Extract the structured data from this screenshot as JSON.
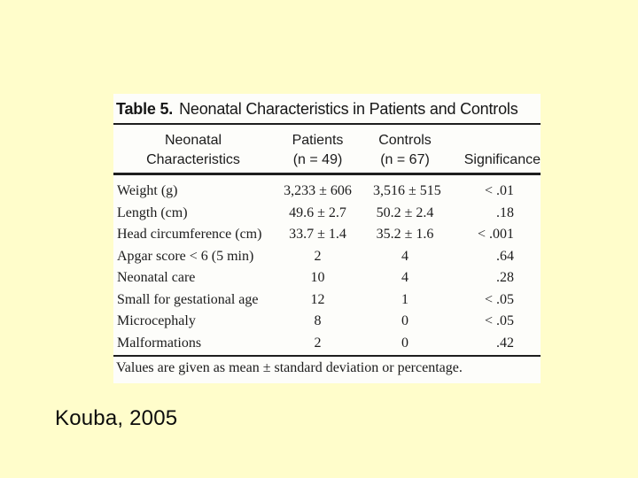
{
  "slide": {
    "background_color": "#FFFDCB",
    "citation": "Kouba, 2005"
  },
  "table_image": {
    "title_label": "Table 5.",
    "title_text": "Neonatal Characteristics in Patients and Controls",
    "header": {
      "characteristic_line1": "Neonatal",
      "characteristic_line2": "Characteristics",
      "patients_line1": "Patients",
      "patients_line2": "(n = 49)",
      "controls_line1": "Controls",
      "controls_line2": "(n = 67)",
      "significance": "Significance"
    },
    "rows": [
      {
        "label": "Weight (g)",
        "patients": "3,233 ± 606",
        "controls": "3,516 ± 515",
        "significance": "< .01"
      },
      {
        "label": "Length (cm)",
        "patients": "49.6 ± 2.7",
        "controls": "50.2 ± 2.4",
        "significance": ".18"
      },
      {
        "label": "Head circumference (cm)",
        "patients": "33.7 ± 1.4",
        "controls": "35.2 ± 1.6",
        "significance": "< .001"
      },
      {
        "label": "Apgar score < 6 (5 min)",
        "patients": "2",
        "controls": "4",
        "significance": ".64"
      },
      {
        "label": "Neonatal care",
        "patients": "10",
        "controls": "4",
        "significance": ".28"
      },
      {
        "label": "Small for gestational age",
        "patients": "12",
        "controls": "1",
        "significance": "< .05"
      },
      {
        "label": "Microcephaly",
        "patients": "8",
        "controls": "0",
        "significance": "< .05"
      },
      {
        "label": "Malformations",
        "patients": "2",
        "controls": "0",
        "significance": ".42"
      }
    ],
    "footnote": "Values are given as mean ± standard deviation or percentage."
  }
}
